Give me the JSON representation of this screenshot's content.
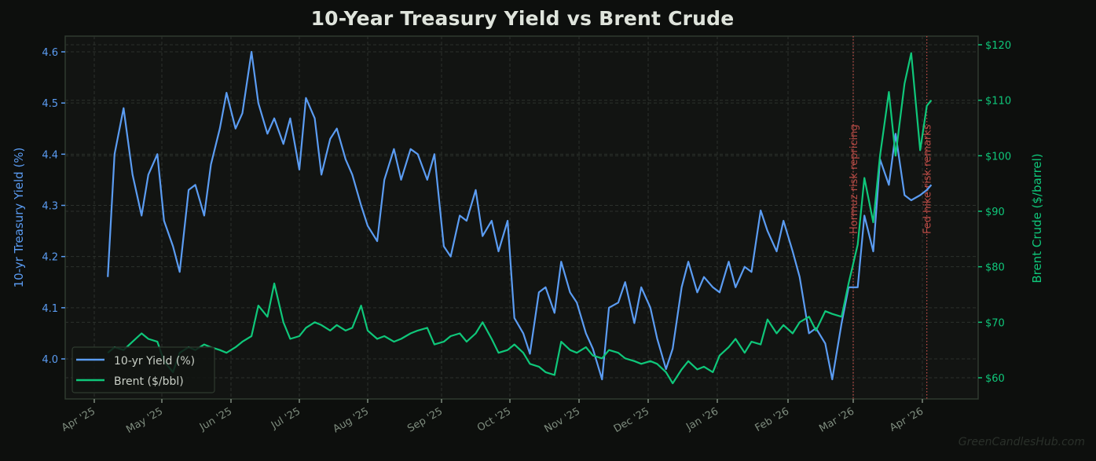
{
  "title": "10-Year Treasury Yield vs Brent Crude",
  "watermark": "GreenCandlesHub.com",
  "colors": {
    "background": "#0d0f0d",
    "plot_bg": "#121412",
    "yield": "#5b9cf2",
    "brent": "#0fc77a",
    "annotation": "#c8504a",
    "tick_text": "#7e8c7e",
    "grid": "#2c312c",
    "frame": "#2f3a2f"
  },
  "axes": {
    "left_label": "10-yr Treasury Yield (%)",
    "right_label": "Brent Crude ($/barrel)",
    "left_ticks": [
      "4.0",
      "4.1",
      "4.2",
      "4.3",
      "4.4",
      "4.5",
      "4.6"
    ],
    "right_ticks": [
      "$60",
      "$70",
      "$80",
      "$90",
      "$100",
      "$110",
      "$120"
    ],
    "x_ticks": [
      "Apr '25",
      "May '25",
      "Jun '25",
      "Jul '25",
      "Aug '25",
      "Sep '25",
      "Oct '25",
      "Nov '25",
      "Dec '25",
      "Jan '26",
      "Feb '26",
      "Mar '26",
      "Apr '26"
    ]
  },
  "legend": {
    "items": [
      {
        "label": "10-yr Yield (%)",
        "color": "#5b9cf2"
      },
      {
        "label": "Brent ($/bbl)",
        "color": "#0fc77a"
      }
    ]
  },
  "annotations": [
    {
      "label": "Hormuz risk repricing",
      "date": "2026-03-01"
    },
    {
      "label": "Fed hike-risk remarks",
      "date": "2026-04-03"
    }
  ],
  "chart_data": {
    "type": "line",
    "title": "10-Year Treasury Yield vs Brent Crude",
    "xlabel": "",
    "ylabel": "10-yr Treasury Yield (%)",
    "ylabel_right": "Brent Crude ($/barrel)",
    "x_tick_labels": [
      "Apr '25",
      "May '25",
      "Jun '25",
      "Jul '25",
      "Aug '25",
      "Sep '25",
      "Oct '25",
      "Nov '25",
      "Dec '25",
      "Jan '26",
      "Feb '26",
      "Mar '26",
      "Apr '26"
    ],
    "ylim": [
      3.92,
      4.63
    ],
    "ylim_right": [
      55.5,
      121.5
    ],
    "grid": true,
    "legend_position": "lower left",
    "x": [
      "2025-04-07",
      "2025-04-10",
      "2025-04-14",
      "2025-04-18",
      "2025-04-22",
      "2025-04-25",
      "2025-04-29",
      "2025-05-02",
      "2025-05-06",
      "2025-05-09",
      "2025-05-13",
      "2025-05-16",
      "2025-05-20",
      "2025-05-23",
      "2025-05-27",
      "2025-05-30",
      "2025-06-03",
      "2025-06-06",
      "2025-06-10",
      "2025-06-13",
      "2025-06-17",
      "2025-06-20",
      "2025-06-24",
      "2025-06-27",
      "2025-07-01",
      "2025-07-04",
      "2025-07-08",
      "2025-07-11",
      "2025-07-15",
      "2025-07-18",
      "2025-07-22",
      "2025-07-25",
      "2025-07-29",
      "2025-08-01",
      "2025-08-05",
      "2025-08-08",
      "2025-08-12",
      "2025-08-15",
      "2025-08-19",
      "2025-08-22",
      "2025-08-26",
      "2025-08-29",
      "2025-09-02",
      "2025-09-05",
      "2025-09-09",
      "2025-09-12",
      "2025-09-16",
      "2025-09-19",
      "2025-09-23",
      "2025-09-26",
      "2025-09-30",
      "2025-10-03",
      "2025-10-07",
      "2025-10-10",
      "2025-10-14",
      "2025-10-17",
      "2025-10-21",
      "2025-10-24",
      "2025-10-28",
      "2025-10-31",
      "2025-11-04",
      "2025-11-07",
      "2025-11-11",
      "2025-11-14",
      "2025-11-18",
      "2025-11-21",
      "2025-11-25",
      "2025-11-28",
      "2025-12-02",
      "2025-12-05",
      "2025-12-09",
      "2025-12-12",
      "2025-12-16",
      "2025-12-19",
      "2025-12-23",
      "2025-12-26",
      "2025-12-30",
      "2026-01-02",
      "2026-01-06",
      "2026-01-09",
      "2026-01-13",
      "2026-01-16",
      "2026-01-20",
      "2026-01-23",
      "2026-01-27",
      "2026-01-30",
      "2026-02-03",
      "2026-02-06",
      "2026-02-10",
      "2026-02-13",
      "2026-02-17",
      "2026-02-20",
      "2026-02-24",
      "2026-02-27",
      "2026-03-03",
      "2026-03-06",
      "2026-03-10",
      "2026-03-13",
      "2026-03-17",
      "2026-03-20",
      "2026-03-24",
      "2026-03-27",
      "2026-03-31",
      "2026-04-03",
      "2026-04-05"
    ],
    "series": [
      {
        "name": "10-yr Yield (%)",
        "axis": "left",
        "values": [
          4.16,
          4.4,
          4.49,
          4.36,
          4.28,
          4.36,
          4.4,
          4.27,
          4.22,
          4.17,
          4.33,
          4.34,
          4.28,
          4.38,
          4.45,
          4.52,
          4.45,
          4.48,
          4.6,
          4.5,
          4.44,
          4.47,
          4.42,
          4.47,
          4.37,
          4.51,
          4.47,
          4.36,
          4.43,
          4.45,
          4.39,
          4.36,
          4.3,
          4.26,
          4.23,
          4.35,
          4.41,
          4.35,
          4.41,
          4.4,
          4.35,
          4.4,
          4.22,
          4.2,
          4.28,
          4.27,
          4.33,
          4.24,
          4.27,
          4.21,
          4.27,
          4.08,
          4.05,
          4.01,
          4.13,
          4.14,
          4.09,
          4.19,
          4.13,
          4.11,
          4.05,
          4.02,
          3.96,
          4.1,
          4.11,
          4.15,
          4.07,
          4.14,
          4.1,
          4.04,
          3.98,
          4.02,
          4.14,
          4.19,
          4.13,
          4.16,
          4.14,
          4.13,
          4.19,
          4.14,
          4.18,
          4.17,
          4.29,
          4.25,
          4.21,
          4.27,
          4.21,
          4.16,
          4.05,
          4.06,
          4.03,
          3.96,
          4.07,
          4.14,
          4.14,
          4.28,
          4.21,
          4.39,
          4.34,
          4.44,
          4.32,
          4.31,
          4.32,
          4.33,
          4.34
        ]
      },
      {
        "name": "Brent ($/bbl)",
        "axis": "right",
        "values": [
          64.5,
          65.5,
          65.0,
          66.5,
          68.0,
          67.0,
          66.5,
          63.0,
          61.0,
          64.5,
          65.5,
          65.0,
          66.0,
          65.5,
          65.0,
          64.5,
          65.5,
          66.5,
          67.5,
          73.0,
          71.0,
          77.0,
          70.0,
          67.0,
          67.5,
          69.0,
          70.0,
          69.5,
          68.5,
          69.5,
          68.5,
          69.0,
          73.0,
          68.5,
          67.0,
          67.5,
          66.5,
          67.0,
          68.0,
          68.5,
          69.0,
          66.0,
          66.5,
          67.5,
          68.0,
          66.5,
          68.0,
          70.0,
          67.0,
          64.5,
          65.0,
          66.0,
          64.5,
          62.5,
          62.0,
          61.0,
          60.5,
          66.5,
          65.0,
          64.5,
          65.5,
          64.0,
          63.5,
          65.0,
          64.5,
          63.5,
          63.0,
          62.5,
          63.0,
          62.5,
          61.0,
          59.0,
          61.5,
          63.0,
          61.5,
          62.0,
          61.0,
          64.0,
          65.5,
          67.0,
          64.5,
          66.5,
          66.0,
          70.5,
          68.0,
          69.5,
          68.0,
          70.0,
          71.0,
          68.5,
          72.0,
          71.5,
          71.0,
          77.0,
          84.0,
          96.0,
          88.0,
          100.0,
          111.5,
          100.0,
          113.0,
          118.5,
          101.0,
          109.0,
          110.0
        ]
      }
    ],
    "annotations": [
      {
        "text": "Hormuz risk repricing",
        "x": "2026-03-01",
        "style": "vertical dotted red line"
      },
      {
        "text": "Fed hike-risk remarks",
        "x": "2026-04-03",
        "style": "vertical dotted red line"
      }
    ]
  }
}
